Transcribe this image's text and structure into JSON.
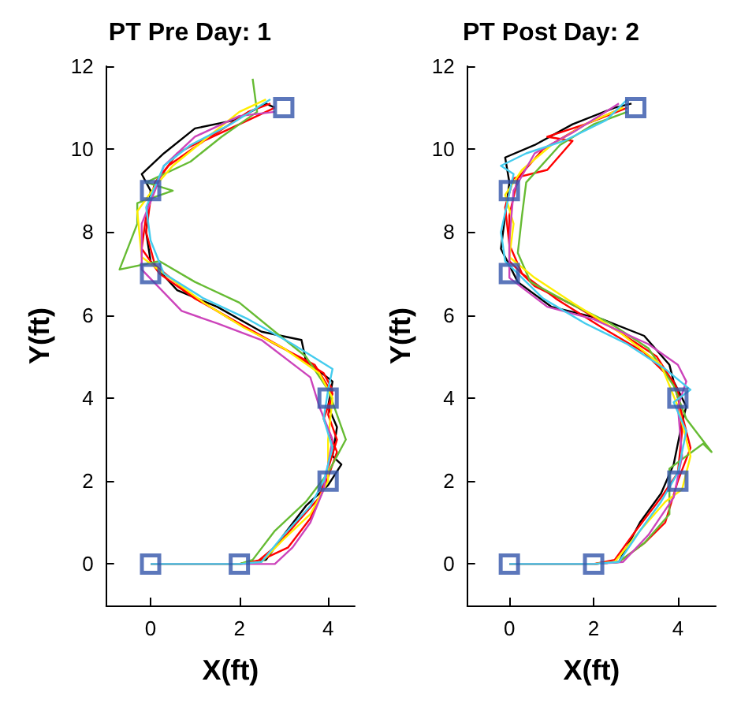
{
  "chart_data": [
    {
      "type": "line",
      "title": "PT Pre Day: 1",
      "xlabel": "X(ft)",
      "ylabel": "Y(ft)",
      "xlim": [
        -1,
        4.6
      ],
      "ylim": [
        -1,
        12
      ],
      "xticks": [
        0,
        2,
        4
      ],
      "yticks": [
        0,
        2,
        4,
        6,
        8,
        10,
        12
      ],
      "series": [
        {
          "color": "#000000",
          "x": [
            0,
            2,
            2.6,
            3,
            3.5,
            4,
            4.3,
            4.1,
            4.2,
            4,
            4.1,
            3.5,
            3.4,
            2.5,
            1.5,
            0.6,
            0,
            -0.1,
            0,
            -0.2,
            0.3,
            1,
            1.9,
            2.6,
            2.8
          ],
          "values": [
            0,
            0,
            0.1,
            0.7,
            1.4,
            1.9,
            2.4,
            2.6,
            3.3,
            3.8,
            4.4,
            4.9,
            5.4,
            5.6,
            6.2,
            6.6,
            7.3,
            8,
            9,
            9.4,
            9.9,
            10.5,
            10.7,
            11.1,
            11
          ]
        },
        {
          "color": "#ff0000",
          "x": [
            0,
            2,
            2.4,
            2.9,
            3.3,
            3.8,
            4,
            4.2,
            4,
            4.1,
            3.9,
            3,
            2,
            1,
            0.2,
            -0.2,
            -0.1,
            0.1,
            0.4,
            1.2,
            2,
            2.8
          ],
          "values": [
            0,
            0,
            0.05,
            0.5,
            1,
            1.6,
            2.3,
            3,
            3.6,
            4.2,
            4.6,
            5.2,
            5.8,
            6.4,
            7,
            7.6,
            8.4,
            9.2,
            9.6,
            10.2,
            10.6,
            11
          ]
        },
        {
          "color": "#ff0000",
          "x": [
            0,
            2,
            2.5,
            3.1,
            3.6,
            3.9,
            4.2,
            3.9,
            4.1,
            3.7,
            2.8,
            1.8,
            0.9,
            0.1,
            -0.1,
            0,
            0.2,
            0.6,
            1.5,
            2.2,
            2.7
          ],
          "values": [
            0,
            0,
            0.1,
            0.4,
            1.1,
            1.8,
            2.7,
            3.5,
            4.1,
            4.8,
            5.3,
            5.9,
            6.5,
            7.2,
            8,
            8.8,
            9.3,
            9.9,
            10.4,
            10.9,
            11.1
          ]
        },
        {
          "color": "#66bb33",
          "x": [
            0,
            2,
            2.3,
            2.8,
            3.5,
            4,
            4.4,
            4.2,
            4,
            3.5,
            2.8,
            2,
            1,
            0.2,
            -0.7,
            -0.3,
            -0.3,
            0.5,
            -0.1,
            0.9,
            1.6,
            2.4,
            2.3
          ],
          "values": [
            0,
            0,
            0.1,
            0.8,
            1.5,
            2.2,
            3,
            3.6,
            4.2,
            5,
            5.6,
            6.3,
            6.8,
            7.3,
            7.1,
            8.2,
            8.7,
            9,
            9.2,
            9.7,
            10.3,
            10.9,
            11.7
          ]
        },
        {
          "color": "#ffee00",
          "x": [
            0,
            2,
            2.5,
            3,
            3.6,
            4,
            4,
            4.1,
            3.8,
            3,
            2.1,
            1.2,
            0.3,
            -0.2,
            -0.3,
            0.1,
            0.5,
            1.3,
            2,
            2.6
          ],
          "values": [
            0,
            0,
            0.05,
            0.6,
            1.2,
            2,
            3,
            4,
            4.6,
            5.2,
            5.7,
            6.3,
            7,
            7.4,
            8.5,
            9.1,
            9.6,
            10.3,
            10.9,
            11.2
          ]
        },
        {
          "color": "#cc44bb",
          "x": [
            0,
            2,
            2.8,
            3.2,
            3.6,
            3.9,
            4.1,
            3.8,
            3.6,
            2.5,
            1.5,
            0.7,
            -0.2,
            -0.2,
            0.1,
            0.3,
            1,
            2,
            2.8
          ],
          "values": [
            0,
            0,
            0,
            0.4,
            1,
            1.8,
            3,
            3.8,
            4.5,
            5.4,
            5.8,
            6.1,
            7.1,
            8.2,
            9,
            9.6,
            10.3,
            10.8,
            10.9
          ]
        },
        {
          "color": "#44ccee",
          "x": [
            0,
            2,
            2.5,
            3,
            3.6,
            3.9,
            4.1,
            3.9,
            4,
            4.1,
            3.2,
            2.2,
            1.2,
            0.3,
            0,
            -0.1,
            0.3,
            0.9,
            1.8,
            2.7
          ],
          "values": [
            0,
            0,
            0.05,
            0.7,
            1.4,
            2,
            2.8,
            3.5,
            4.2,
            4.7,
            5.3,
            5.9,
            6.4,
            7,
            7.8,
            8.6,
            9.6,
            10.1,
            10.6,
            11.2
          ]
        },
        {
          "type": "scatter",
          "marker": "square",
          "color": "#3355aa",
          "x": [
            0,
            2,
            4,
            4,
            0,
            0,
            3
          ],
          "values": [
            0,
            0,
            2,
            4,
            7,
            9,
            11
          ]
        }
      ]
    },
    {
      "type": "line",
      "title": "PT Post Day: 2",
      "xlabel": "X(ft)",
      "ylabel": "Y(ft)",
      "xlim": [
        -1,
        4.9
      ],
      "ylim": [
        -1,
        12
      ],
      "xticks": [
        0,
        2,
        4
      ],
      "yticks": [
        0,
        2,
        4,
        6,
        8,
        10,
        12
      ],
      "series": [
        {
          "color": "#000000",
          "x": [
            0,
            2,
            2.6,
            3.1,
            3.6,
            3.9,
            4.1,
            4.2,
            3.9,
            3.8,
            3.2,
            2.2,
            1,
            0.2,
            -0.2,
            -0.1,
            0,
            -0.1,
            0.6,
            1.5,
            2.5,
            2.9
          ],
          "values": [
            0,
            0,
            0.05,
            1,
            1.7,
            2.4,
            3.4,
            3.8,
            4.4,
            4.8,
            5.5,
            5.9,
            6.2,
            6.8,
            7.6,
            8.4,
            9.2,
            9.8,
            10.1,
            10.6,
            11,
            11.1
          ]
        },
        {
          "color": "#ff0000",
          "x": [
            0,
            2,
            2.6,
            3.2,
            3.7,
            4,
            4.3,
            4.1,
            3.9,
            3.2,
            2.2,
            1.1,
            0.3,
            0,
            -0.1,
            0.1,
            0.9,
            1.5,
            0.9,
            1.8,
            2.8
          ],
          "values": [
            0,
            0,
            0.05,
            0.5,
            1,
            2,
            2.8,
            3.6,
            4.4,
            5.1,
            5.7,
            6.4,
            7,
            7.7,
            8.6,
            9.3,
            9.5,
            10.2,
            10.3,
            10.6,
            11
          ]
        },
        {
          "color": "#ff0000",
          "x": [
            0,
            2,
            2.5,
            3,
            3.6,
            4,
            4.1,
            4,
            3.5,
            2.6,
            1.6,
            0.6,
            0,
            0,
            0.2,
            0.8,
            1.8,
            2.7
          ],
          "values": [
            0,
            0,
            0.1,
            0.8,
            1.6,
            2.2,
            3.2,
            4.2,
            5,
            5.6,
            6.2,
            6.7,
            7.3,
            8.4,
            9.3,
            10,
            10.6,
            11
          ]
        },
        {
          "color": "#66bb33",
          "x": [
            0,
            2,
            2.6,
            3.2,
            3.8,
            3.8,
            4.6,
            4.8,
            4.2,
            3.9,
            3.3,
            2.4,
            1.4,
            0.5,
            0.2,
            0.3,
            0.4,
            1.2,
            2,
            2.8
          ],
          "values": [
            0,
            0,
            0.05,
            0.5,
            1.2,
            2.3,
            2.9,
            2.7,
            3.5,
            4.3,
            5.2,
            5.8,
            6.3,
            6.8,
            7.5,
            8.4,
            9.2,
            10.1,
            10.6,
            10.9
          ]
        },
        {
          "color": "#ffee00",
          "x": [
            0,
            2,
            2.5,
            3.1,
            3.7,
            4.1,
            4.3,
            4,
            3.6,
            2.6,
            1.5,
            0.6,
            0,
            0.1,
            -0.1,
            0.3,
            1,
            1.8,
            2.7
          ],
          "values": [
            0,
            0,
            0.05,
            0.8,
            1.5,
            1.8,
            2.6,
            3.8,
            4.8,
            5.6,
            6.3,
            6.9,
            7.4,
            8.2,
            8.9,
            9.5,
            10.1,
            10.6,
            11
          ]
        },
        {
          "color": "#cc44bb",
          "x": [
            0,
            2,
            2.7,
            3.3,
            3.9,
            4.1,
            4,
            4.2,
            4,
            3.3,
            2,
            0.9,
            0,
            0,
            0.1,
            0.6,
            1.5,
            2.6
          ],
          "values": [
            0,
            0,
            0.05,
            0.7,
            1.6,
            2.6,
            3.8,
            4.4,
            4.8,
            5.3,
            5.9,
            6.2,
            6.9,
            7.8,
            9,
            9.9,
            10.4,
            11.1
          ]
        },
        {
          "color": "#44ccee",
          "x": [
            0,
            2,
            2.6,
            3.1,
            3.6,
            4,
            4.2,
            3.9,
            4.3,
            3.7,
            2.8,
            1.8,
            0.8,
            -0.1,
            -0.2,
            0.1,
            -0.2,
            0.4,
            1.3,
            2.3,
            2.8
          ],
          "values": [
            0,
            0,
            0.05,
            0.8,
            1.5,
            2.2,
            3.2,
            3.9,
            4.2,
            4.7,
            5.3,
            5.8,
            6.4,
            7.3,
            8,
            9.4,
            9.6,
            9.9,
            10.2,
            10.7,
            11.2
          ]
        },
        {
          "type": "scatter",
          "marker": "square",
          "color": "#3355aa",
          "x": [
            0,
            2,
            4,
            4,
            0,
            0,
            3
          ],
          "values": [
            0,
            0,
            2,
            4,
            7,
            9,
            11
          ]
        }
      ]
    }
  ]
}
